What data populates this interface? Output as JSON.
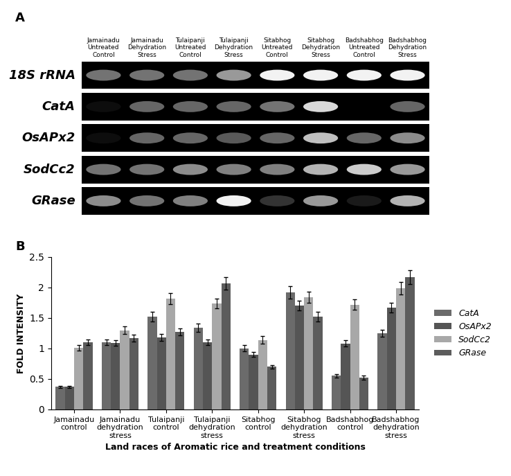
{
  "panel_a": {
    "label": "A",
    "lanes": [
      {
        "name": "Jamainadu",
        "condition": "Untreated Control"
      },
      {
        "name": "Jamainadu",
        "condition": "Dehydration Stress"
      },
      {
        "name": "Tulaipanji",
        "condition": "Untreated Control"
      },
      {
        "name": "Tulaipanji",
        "condition": "Dehydration Stress"
      },
      {
        "name": "Sitabhog",
        "condition": "Untreated Control"
      },
      {
        "name": "Sitabhog",
        "condition": "Dehydration Stress"
      },
      {
        "name": "Badshabhog",
        "condition": "Untreated Control"
      },
      {
        "name": "Badshabhog",
        "condition": "Dehydration Stress"
      }
    ],
    "genes": [
      "18S rRNA",
      "CatA",
      "OsAPx2",
      "SodCc2",
      "GRase"
    ],
    "band_intensity": [
      [
        0.45,
        0.45,
        0.45,
        0.6,
        0.95,
        0.95,
        0.95,
        0.95
      ],
      [
        0.05,
        0.4,
        0.4,
        0.4,
        0.45,
        0.85,
        0.0,
        0.4
      ],
      [
        0.05,
        0.4,
        0.4,
        0.35,
        0.4,
        0.75,
        0.4,
        0.55
      ],
      [
        0.45,
        0.45,
        0.55,
        0.5,
        0.5,
        0.7,
        0.8,
        0.6
      ],
      [
        0.55,
        0.45,
        0.5,
        0.95,
        0.2,
        0.6,
        0.1,
        0.7
      ]
    ]
  },
  "chart_data": {
    "type": "bar",
    "panel_label": "B",
    "x_label": "Land races of Aromatic rice and treatment conditions",
    "y_label": "FOLD INTENSITY",
    "categories": [
      "Jamainadu control",
      "Jamainadu dehydration stress",
      "Tulaipanji control",
      "Tulaipanji dehydration stress",
      "Sitabhog control",
      "Sitabhog dehydration stress",
      "Badshabhog control",
      "Badshabhog dehydration stress"
    ],
    "series": [
      {
        "name": "CatA",
        "color": "#6b6b6b",
        "values": [
          0.37,
          1.1,
          1.52,
          1.34,
          1.0,
          1.92,
          0.55,
          1.25
        ],
        "errors": [
          0.02,
          0.05,
          0.08,
          0.07,
          0.05,
          0.1,
          0.03,
          0.06
        ]
      },
      {
        "name": "OsAPx2",
        "color": "#555555",
        "values": [
          0.37,
          1.09,
          1.18,
          1.1,
          0.9,
          1.7,
          1.08,
          1.67
        ],
        "errors": [
          0.02,
          0.05,
          0.06,
          0.05,
          0.04,
          0.08,
          0.05,
          0.08
        ]
      },
      {
        "name": "SodCc2",
        "color": "#a8a8a8",
        "values": [
          1.01,
          1.3,
          1.82,
          1.74,
          1.14,
          1.84,
          1.72,
          1.99
        ],
        "errors": [
          0.05,
          0.06,
          0.09,
          0.08,
          0.06,
          0.09,
          0.09,
          0.1
        ]
      },
      {
        "name": "GRase",
        "color": "#5c5c5c",
        "values": [
          1.1,
          1.17,
          1.27,
          2.07,
          0.7,
          1.52,
          0.52,
          2.17
        ],
        "errors": [
          0.05,
          0.06,
          0.06,
          0.1,
          0.03,
          0.08,
          0.03,
          0.11
        ]
      }
    ],
    "ylim": [
      0,
      2.5
    ],
    "yticks": [
      0,
      0.5,
      1,
      1.5,
      2,
      2.5
    ],
    "legend": "right",
    "grid": false
  }
}
